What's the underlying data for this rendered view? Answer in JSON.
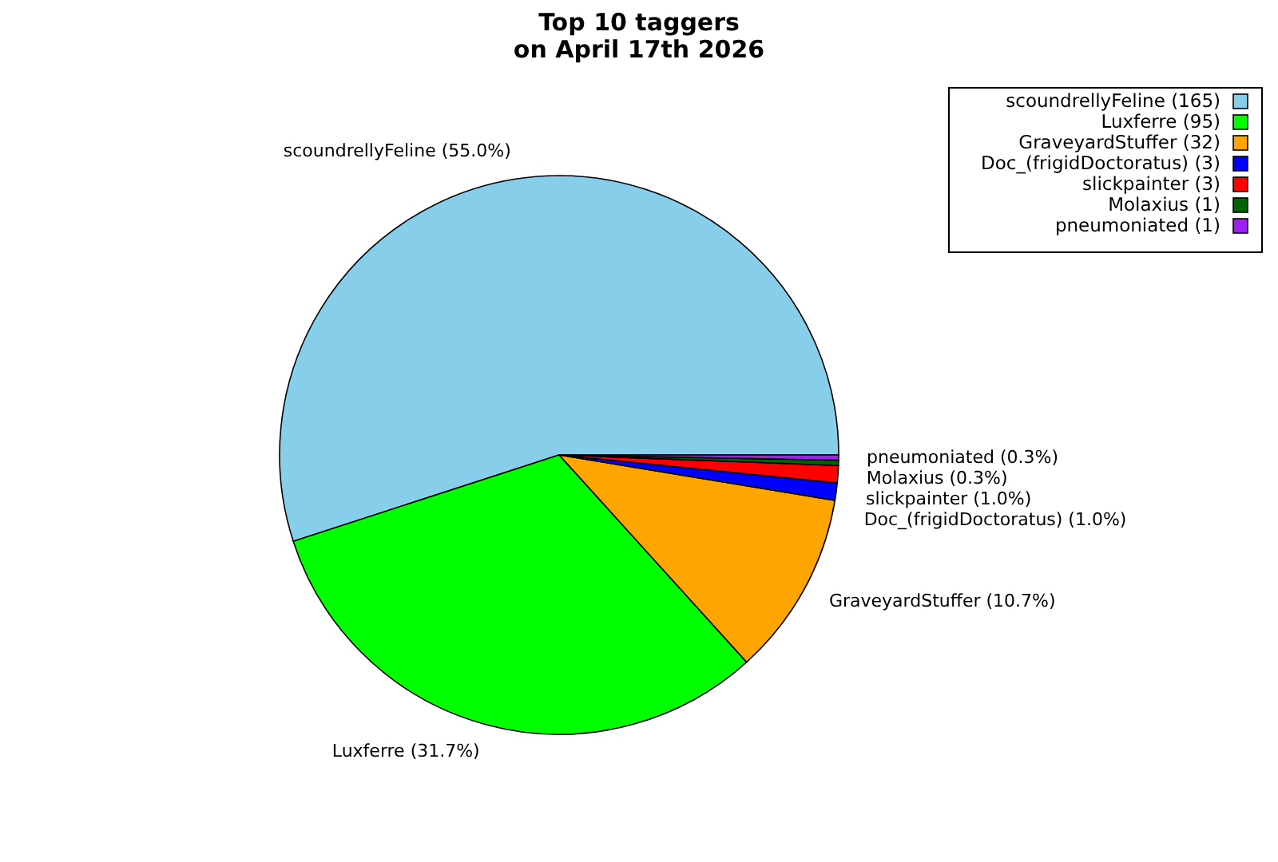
{
  "chart_data": {
    "type": "pie",
    "title": "Top 10 taggers\non April 17th 2026",
    "categories": [
      "scoundrellyFeline (165)",
      "Luxferre (95)",
      "GraveyardStuffer (32)",
      "Doc_(frigidDoctoratus) (3)",
      "slickpainter (3)",
      "Molaxius (1)",
      "pneumoniated (1)"
    ],
    "values": [
      55.0,
      31.7,
      10.7,
      1.0,
      1.0,
      0.3,
      0.3
    ],
    "value_labels": [
      "scoundrellyFeline (55.0%)",
      "Luxferre (31.7%)",
      "GraveyardStuffer (10.7%)",
      "Doc_(frigidDoctoratus) (1.0%)",
      "slickpainter (1.0%)",
      "Molaxius (0.3%)",
      "pneumoniated (0.3%)"
    ],
    "colors": [
      "#87ceeb",
      "#00ff00",
      "#ffa500",
      "#0000ff",
      "#ff0000",
      "#006400",
      "#a020f0"
    ],
    "legend": "top right"
  }
}
